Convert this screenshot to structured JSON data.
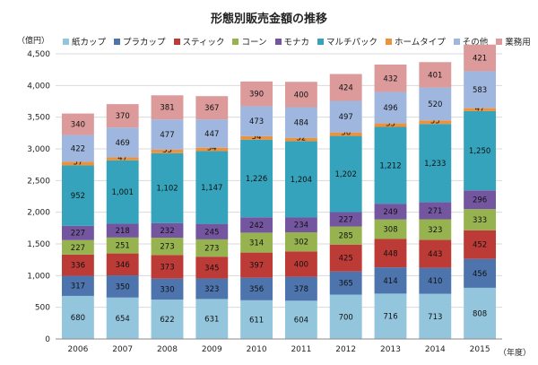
{
  "chart_data": {
    "type": "bar",
    "stacked": true,
    "title": "形態別販売金額の推移",
    "ylabel_unit": "（億円）",
    "xlabel_unit": "（年度）",
    "ylim": [
      0,
      4500
    ],
    "yticks": [
      0,
      500,
      1000,
      1500,
      2000,
      2500,
      3000,
      3500,
      4000,
      4500
    ],
    "ytick_labels": [
      "0",
      "500",
      "1,000",
      "1,500",
      "2,000",
      "2,500",
      "3,000",
      "3,500",
      "4,000",
      "4,500"
    ],
    "grid": true,
    "legend_position": "top",
    "categories": [
      "2006",
      "2007",
      "2008",
      "2009",
      "2010",
      "2011",
      "2012",
      "2013",
      "2014",
      "2015"
    ],
    "series": [
      {
        "name": "紙カップ",
        "color": "#93c6dd",
        "values": [
          680,
          654,
          622,
          631,
          611,
          604,
          700,
          716,
          713,
          808
        ]
      },
      {
        "name": "プラカップ",
        "color": "#4d74ad",
        "values": [
          317,
          350,
          330,
          323,
          356,
          378,
          365,
          414,
          410,
          456
        ]
      },
      {
        "name": "スティック",
        "color": "#bd3b36",
        "values": [
          336,
          346,
          373,
          345,
          397,
          400,
          425,
          448,
          443,
          452
        ]
      },
      {
        "name": "コーン",
        "color": "#97b350",
        "values": [
          227,
          251,
          273,
          273,
          314,
          302,
          285,
          308,
          323,
          333
        ]
      },
      {
        "name": "モナカ",
        "color": "#7456a0",
        "values": [
          227,
          218,
          232,
          245,
          242,
          234,
          227,
          249,
          271,
          296
        ]
      },
      {
        "name": "マルチパック",
        "color": "#35a3bb",
        "values": [
          952,
          1001,
          1102,
          1147,
          1226,
          1204,
          1202,
          1212,
          1233,
          1250
        ]
      },
      {
        "name": "ホームタイプ",
        "color": "#ed913b",
        "values": [
          57,
          47,
          55,
          54,
          54,
          52,
          56,
          55,
          55,
          47
        ]
      },
      {
        "name": "その他",
        "color": "#9fb6de",
        "values": [
          422,
          469,
          477,
          447,
          473,
          484,
          497,
          496,
          520,
          583
        ]
      },
      {
        "name": "業務用",
        "color": "#dc9a9b",
        "values": [
          340,
          370,
          381,
          367,
          390,
          400,
          424,
          432,
          401,
          421
        ]
      }
    ]
  }
}
